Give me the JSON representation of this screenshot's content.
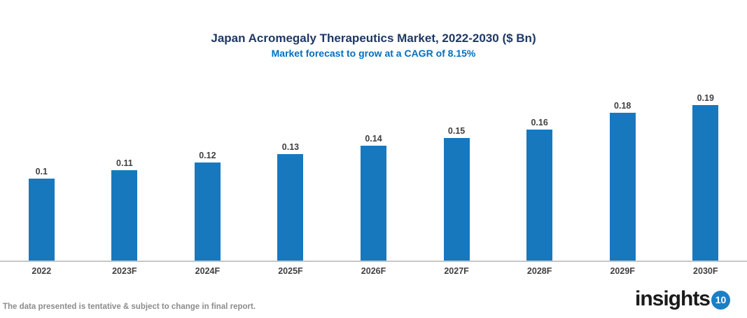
{
  "header": {
    "title": "Japan Acromegaly Therapeutics Market, 2022-2030 ($ Bn)",
    "subtitle": "Market forecast to grow at a CAGR of 8.15%",
    "title_color": "#1F3864",
    "subtitle_color": "#0070C0"
  },
  "chart_data": {
    "type": "bar",
    "title": "Japan Acromegaly Therapeutics Market, 2022-2030 ($ Bn)",
    "subtitle": "Market forecast to grow at a CAGR of 8.15%",
    "categories": [
      "2022",
      "2023F",
      "2024F",
      "2025F",
      "2026F",
      "2027F",
      "2028F",
      "2029F",
      "2030F"
    ],
    "values": [
      0.1,
      0.11,
      0.12,
      0.13,
      0.14,
      0.15,
      0.16,
      0.18,
      0.19
    ],
    "value_labels": [
      "0.1",
      "0.11",
      "0.12",
      "0.13",
      "0.14",
      "0.15",
      "0.16",
      "0.18",
      "0.19"
    ],
    "xlabel": "",
    "ylabel": "",
    "ylim": [
      0,
      0.2
    ],
    "grid": false,
    "legend": "none",
    "bar_color": "#1878BE",
    "label_color": "#404040",
    "axis_line_color": "#C6C6C6"
  },
  "footer": {
    "disclaimer": "The data presented is tentative & subject to change in final report.",
    "logo_text": "insights",
    "logo_badge": "10",
    "logo_badge_color": "#1B7FC3"
  }
}
